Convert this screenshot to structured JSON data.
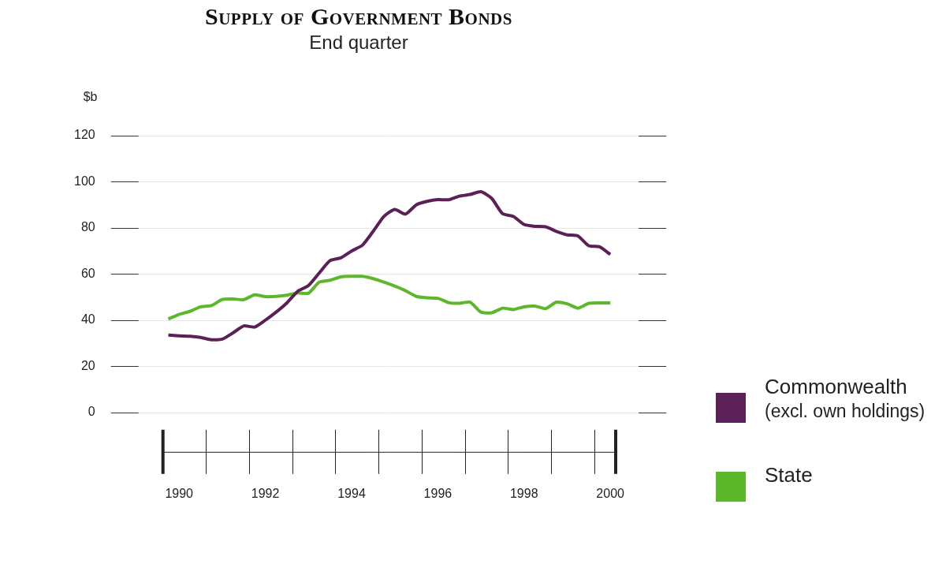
{
  "chart_data": {
    "type": "line",
    "title": "Supply of Government Bonds",
    "subtitle": "End quarter",
    "ylabel": "$b",
    "categories": [
      null,
      "1990",
      null,
      null,
      null,
      null,
      null,
      null,
      null,
      "1992",
      null,
      null,
      null,
      null,
      null,
      null,
      null,
      "1994",
      null,
      null,
      null,
      null,
      null,
      null,
      null,
      "1996",
      null,
      null,
      null,
      null,
      null,
      null,
      null,
      "1998",
      null,
      null,
      null,
      null,
      null,
      null,
      null,
      "2000"
    ],
    "series": [
      {
        "name": "Commonwealth (excl. own holdings)",
        "color": "#5c2058",
        "values": [
          33.5,
          33.2,
          33,
          32.5,
          31.5,
          31.8,
          34.5,
          37.5,
          37,
          40,
          43.5,
          47.5,
          52.5,
          55,
          60.5,
          65.8,
          67,
          70,
          72.5,
          78.5,
          85,
          88,
          86,
          90,
          91.5,
          92.3,
          92.2,
          93.8,
          94.5,
          95.7,
          92.8,
          86.2,
          85,
          81.5,
          80.7,
          80.5,
          78.5,
          77,
          76.5,
          72.3,
          71.8,
          68.5
        ]
      },
      {
        "name": "State",
        "color": "#5cb82a",
        "values": [
          40.5,
          42.5,
          43.8,
          45.8,
          46.3,
          49,
          49.2,
          48.9,
          51,
          50.2,
          50.3,
          50.8,
          51.8,
          51.7,
          56.5,
          57.3,
          58.8,
          59,
          59,
          58,
          56.5,
          54.8,
          52.8,
          50.3,
          49.7,
          49.5,
          47.6,
          47.3,
          47.8,
          43.5,
          43.2,
          45.2,
          44.6,
          45.8,
          46.1,
          45,
          47.8,
          47.1,
          45.2,
          47.3,
          47.5,
          47.5
        ]
      }
    ],
    "ylim": [
      0,
      120
    ],
    "yticks": [
      0,
      20,
      40,
      60,
      80,
      100,
      120
    ],
    "grid": true,
    "legend": "right"
  }
}
